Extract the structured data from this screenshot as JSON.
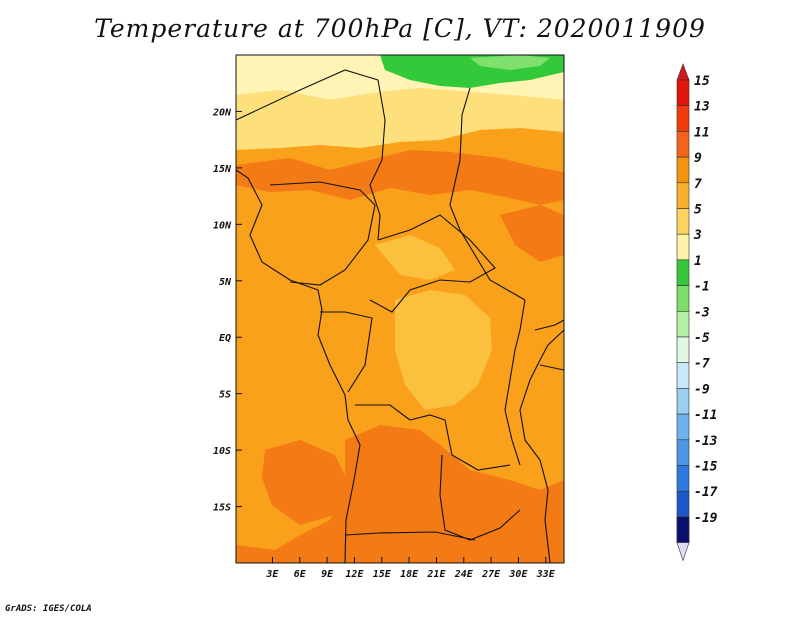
{
  "title": "Temperature at 700hPa [C], VT: 2020011909",
  "credit": "GrADS: IGES/COLA",
  "map": {
    "lon_range": [
      -1,
      35
    ],
    "lat_range": [
      -20,
      25
    ],
    "lon_ticks": [
      {
        "value": 3,
        "label": "3E"
      },
      {
        "value": 6,
        "label": "6E"
      },
      {
        "value": 9,
        "label": "9E"
      },
      {
        "value": 12,
        "label": "12E"
      },
      {
        "value": 15,
        "label": "15E"
      },
      {
        "value": 18,
        "label": "18E"
      },
      {
        "value": 21,
        "label": "21E"
      },
      {
        "value": 24,
        "label": "24E"
      },
      {
        "value": 27,
        "label": "27E"
      },
      {
        "value": 30,
        "label": "30E"
      },
      {
        "value": 33,
        "label": "33E"
      }
    ],
    "lat_ticks": [
      {
        "value": 20,
        "label": "20N"
      },
      {
        "value": 15,
        "label": "15N"
      },
      {
        "value": 10,
        "label": "10N"
      },
      {
        "value": 5,
        "label": "5N"
      },
      {
        "value": 0,
        "label": "EQ"
      },
      {
        "value": -5,
        "label": "5S"
      },
      {
        "value": -10,
        "label": "10S"
      },
      {
        "value": -15,
        "label": "15S"
      }
    ],
    "field_colors": {
      "warm_9_11": "#f9a11b",
      "warm_11_13": "#f47a16",
      "warm_7_9": "#fbc03e",
      "warm_5_7": "#fde07b",
      "warm_3_5": "#fff4b4",
      "green_1_3": "#33c93a",
      "green_-1_1": "#7fe06e",
      "border": "#111111"
    }
  },
  "colorbar": {
    "levels": [
      {
        "label": "15",
        "color": "#e2140c"
      },
      {
        "label": "13",
        "color": "#f23b0a"
      },
      {
        "label": "11",
        "color": "#f4631a"
      },
      {
        "label": "9",
        "color": "#f6920e"
      },
      {
        "label": "7",
        "color": "#f9b02a"
      },
      {
        "label": "5",
        "color": "#fcd35e"
      },
      {
        "label": "3",
        "color": "#fff2a6"
      },
      {
        "label": "1",
        "color": "#36c83a"
      },
      {
        "label": "-1",
        "color": "#7ddf6a"
      },
      {
        "label": "-3",
        "color": "#b3f0a4"
      },
      {
        "label": "-5",
        "color": "#e2f8e2"
      },
      {
        "label": "-7",
        "color": "#c6e8f8"
      },
      {
        "label": "-9",
        "color": "#99d0f2"
      },
      {
        "label": "-11",
        "color": "#6fb3ee"
      },
      {
        "label": "-13",
        "color": "#4d96e6"
      },
      {
        "label": "-15",
        "color": "#2f78dd"
      },
      {
        "label": "-17",
        "color": "#1c57c8"
      },
      {
        "label": "-19",
        "color": "#0c2d9c"
      }
    ],
    "top_cap_color": "#d8191b",
    "bottom_cap_color": "#dcdcf6",
    "bottom_band_color": "#0a0f6e"
  }
}
